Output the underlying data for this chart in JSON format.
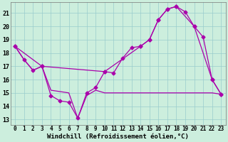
{
  "xlabel": "Windchill (Refroidissement éolien,°C)",
  "background_color": "#cceedd",
  "line_color": "#aa00aa",
  "grid_color": "#99cccc",
  "xlim": [
    -0.5,
    23.5
  ],
  "ylim": [
    12.6,
    21.8
  ],
  "yticks": [
    13,
    14,
    15,
    16,
    17,
    18,
    19,
    20,
    21
  ],
  "xticks": [
    0,
    1,
    2,
    3,
    4,
    5,
    6,
    7,
    8,
    9,
    10,
    11,
    12,
    13,
    14,
    15,
    16,
    17,
    18,
    19,
    20,
    21,
    22,
    23
  ],
  "line1_x": [
    0,
    1,
    2,
    3,
    4,
    5,
    6,
    7,
    8,
    9,
    10,
    11,
    12,
    13,
    14,
    15,
    16,
    17,
    18,
    19,
    20,
    21,
    22,
    23
  ],
  "line1_y": [
    18.5,
    17.5,
    16.7,
    17.0,
    14.8,
    14.4,
    14.3,
    13.1,
    15.0,
    15.4,
    16.6,
    16.5,
    17.6,
    18.4,
    18.5,
    19.0,
    20.5,
    21.3,
    21.5,
    21.1,
    20.0,
    19.2,
    16.0,
    14.9
  ],
  "line2_x": [
    0,
    3,
    10,
    14,
    15,
    16,
    17,
    18,
    20,
    22,
    23
  ],
  "line2_y": [
    18.5,
    17.0,
    16.6,
    18.5,
    19.0,
    20.5,
    21.3,
    21.5,
    20.0,
    16.0,
    14.9
  ],
  "line3_x": [
    0,
    1,
    2,
    3,
    4,
    5,
    6,
    7,
    8,
    9,
    10,
    11,
    12,
    13,
    14,
    15,
    16,
    17,
    18,
    19,
    20,
    21,
    22,
    23
  ],
  "line3_y": [
    18.5,
    17.5,
    16.7,
    17.0,
    15.2,
    15.1,
    15.0,
    13.1,
    14.8,
    15.2,
    15.0,
    15.0,
    15.0,
    15.0,
    15.0,
    15.0,
    15.0,
    15.0,
    15.0,
    15.0,
    15.0,
    15.0,
    15.0,
    14.9
  ],
  "markersize": 2.5,
  "linewidth": 0.9,
  "fontsize_label": 6.5,
  "fontsize_tick": 5.5
}
